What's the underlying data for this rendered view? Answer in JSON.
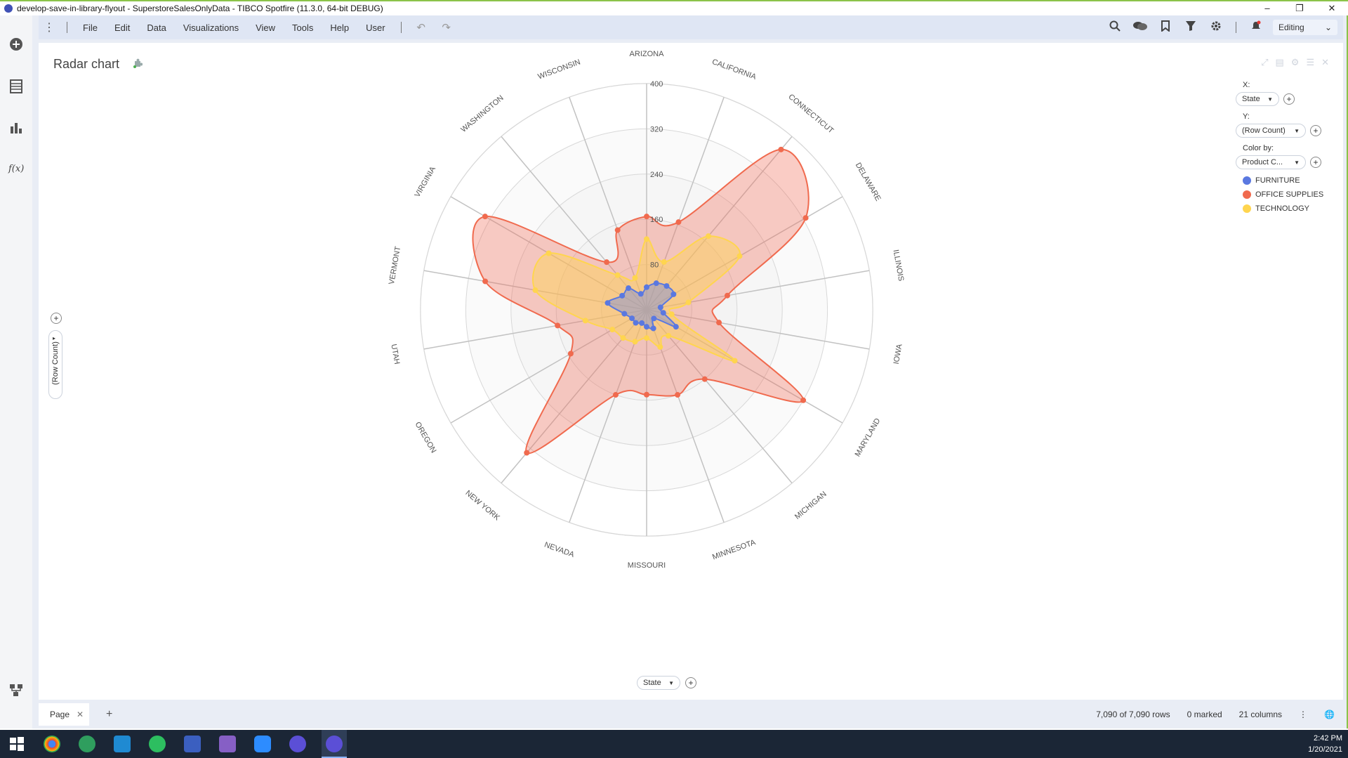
{
  "window": {
    "title": "develop-save-in-library-flyout - SuperstoreSalesOnlyData - TIBCO Spotfire (11.3.0, 64-bit DEBUG)",
    "minimize": "–",
    "restore": "❐",
    "close": "✕"
  },
  "rail": {
    "icons": [
      "add-icon",
      "data-table-icon",
      "bar-chart-icon",
      "function-icon",
      "data-canvas-icon"
    ],
    "function_glyph": "f(x)"
  },
  "menubar": {
    "items": [
      "File",
      "Edit",
      "Data",
      "Visualizations",
      "View",
      "Tools",
      "Help",
      "User"
    ],
    "editing_label": "Editing"
  },
  "visualization": {
    "title": "Radar chart",
    "x_label": "X:",
    "x_value": "State",
    "y_label": "Y:",
    "y_value": "(Row Count)",
    "color_label": "Color by:",
    "color_value": "Product C...",
    "bottom_axis": "State",
    "left_axis": "(Row Count)"
  },
  "chart_data": {
    "type": "radar",
    "categories": [
      "ARIZONA",
      "CALIFORNIA",
      "CONNECTICUT",
      "DELAWARE",
      "ILLINOIS",
      "IOWA",
      "MARYLAND",
      "MICHIGAN",
      "MINNESOTA",
      "MISSOURI",
      "NEVADA",
      "NEW YORK",
      "OREGON",
      "UTAH",
      "VERMONT",
      "VIRGINIA",
      "WASHINGTON",
      "WISCONSIN"
    ],
    "radial_ticks": [
      80,
      160,
      240,
      320,
      400
    ],
    "ylim": [
      0,
      400
    ],
    "series": [
      {
        "name": "OFFICE SUPPLIES",
        "color": "#f06a4e",
        "fill": "rgba(240,110,90,0.35)",
        "values": [
          165,
          165,
          370,
          325,
          145,
          130,
          320,
          160,
          160,
          150,
          160,
          330,
          155,
          160,
          290,
          330,
          110,
          150
        ]
      },
      {
        "name": "TECHNOLOGY",
        "color": "#ffd54f",
        "fill": "rgba(255,213,79,0.45)",
        "values": [
          125,
          90,
          170,
          190,
          75,
          45,
          180,
          60,
          70,
          50,
          60,
          65,
          70,
          110,
          200,
          200,
          80,
          60
        ]
      },
      {
        "name": "FURNITURE",
        "color": "#5a78e0",
        "fill": "rgba(120,140,220,0.45)",
        "values": [
          40,
          50,
          55,
          55,
          25,
          30,
          60,
          20,
          35,
          30,
          25,
          30,
          30,
          40,
          70,
          50,
          50,
          30
        ]
      }
    ],
    "legend_position": "right",
    "grid": true
  },
  "legend": {
    "items": [
      {
        "label": "FURNITURE",
        "color": "#5a78e0"
      },
      {
        "label": "OFFICE SUPPLIES",
        "color": "#f06a4e"
      },
      {
        "label": "TECHNOLOGY",
        "color": "#ffd54f"
      }
    ]
  },
  "pagebar": {
    "page_label": "Page",
    "rows": "7,090 of 7,090 rows",
    "marked": "0 marked",
    "columns": "21 columns"
  },
  "taskbar": {
    "time": "2:42 PM",
    "date": "1/20/2021"
  }
}
